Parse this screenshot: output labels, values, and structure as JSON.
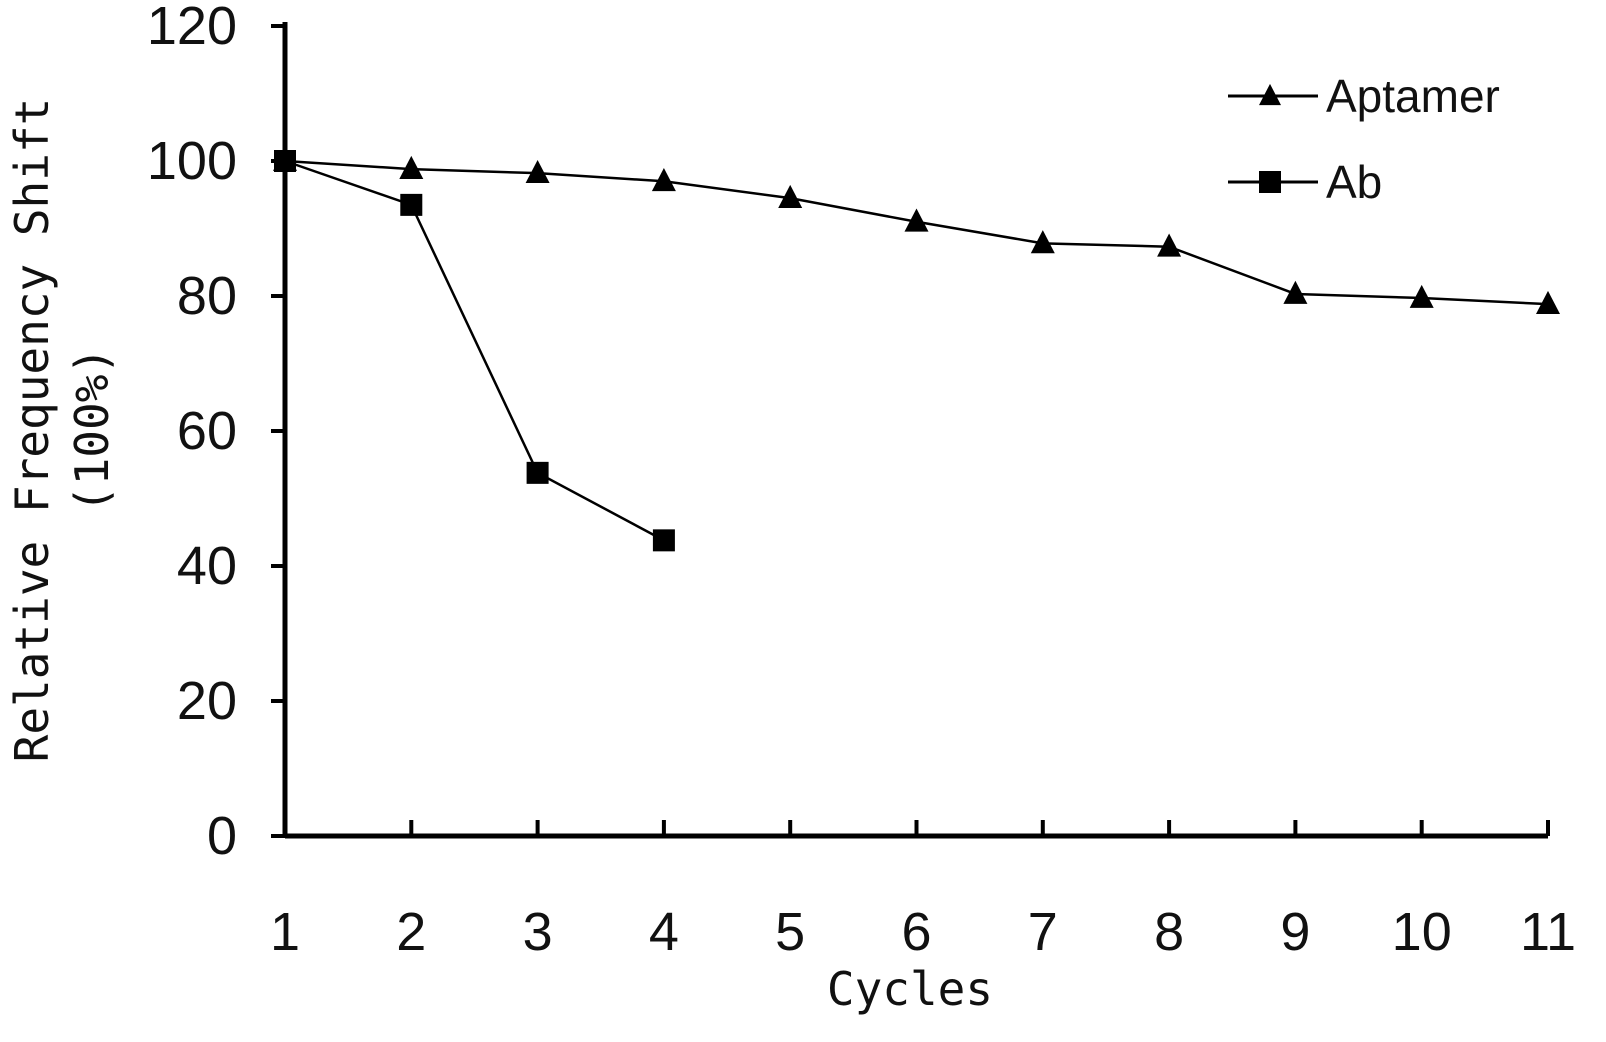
{
  "chart_data": {
    "type": "line",
    "title": "",
    "xlabel": "Cycles",
    "ylabel": "Relative Frequency Shift",
    "ylabel_line2": "(100%)",
    "x": [
      1,
      2,
      3,
      4,
      5,
      6,
      7,
      8,
      9,
      10,
      11
    ],
    "xticks": [
      "1",
      "2",
      "3",
      "4",
      "5",
      "6",
      "7",
      "8",
      "9",
      "10",
      "11"
    ],
    "yticks": [
      "0",
      "20",
      "40",
      "60",
      "80",
      "100",
      "120"
    ],
    "ylim": [
      0,
      120
    ],
    "xlim": [
      1,
      11
    ],
    "grid": false,
    "legend_position": "top-right",
    "series": [
      {
        "name": "Aptamer",
        "marker": "triangle",
        "color": "#000000",
        "x": [
          1,
          2,
          3,
          4,
          5,
          6,
          7,
          8,
          9,
          10,
          11
        ],
        "values": [
          100,
          98.8,
          98.2,
          97,
          94.5,
          91,
          87.8,
          87.3,
          80.3,
          79.7,
          78.8
        ]
      },
      {
        "name": "Ab",
        "marker": "square",
        "color": "#000000",
        "x": [
          1,
          2,
          3,
          4
        ],
        "values": [
          100,
          93.5,
          53.8,
          43.8
        ]
      }
    ]
  }
}
